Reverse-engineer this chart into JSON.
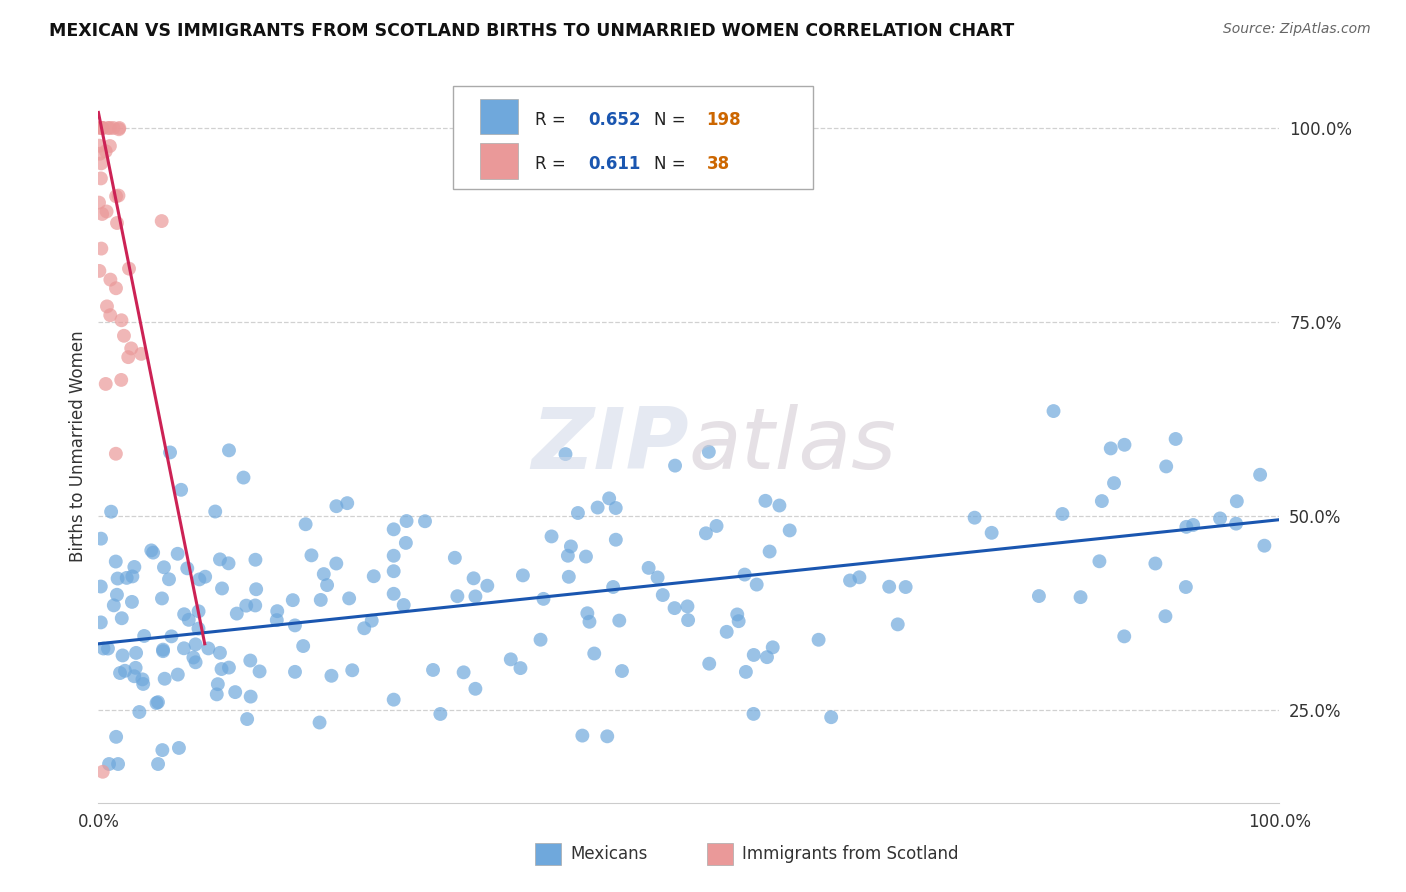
{
  "title": "MEXICAN VS IMMIGRANTS FROM SCOTLAND BIRTHS TO UNMARRIED WOMEN CORRELATION CHART",
  "source": "Source: ZipAtlas.com",
  "ylabel": "Births to Unmarried Women",
  "xlim": [
    0,
    1
  ],
  "ylim": [
    0.13,
    1.05
  ],
  "x_tick_labels": [
    "0.0%",
    "100.0%"
  ],
  "y_ticks": [
    0.25,
    0.5,
    0.75,
    1.0
  ],
  "y_tick_labels": [
    "25.0%",
    "50.0%",
    "75.0%",
    "100.0%"
  ],
  "grid_color": "#cccccc",
  "background_color": "#ffffff",
  "blue_color": "#6fa8dc",
  "pink_color": "#ea9999",
  "blue_line_color": "#1a56b0",
  "pink_line_color": "#cc2255",
  "legend_R_blue": "0.652",
  "legend_N_blue": "198",
  "legend_R_pink": "0.611",
  "legend_N_pink": "38",
  "mexicans_label": "Mexicans",
  "scotland_label": "Immigrants from Scotland",
  "blue_trend_x": [
    0.0,
    1.0
  ],
  "blue_trend_y": [
    0.335,
    0.495
  ],
  "pink_trend_x": [
    0.0,
    0.09
  ],
  "pink_trend_y": [
    1.02,
    0.335
  ]
}
